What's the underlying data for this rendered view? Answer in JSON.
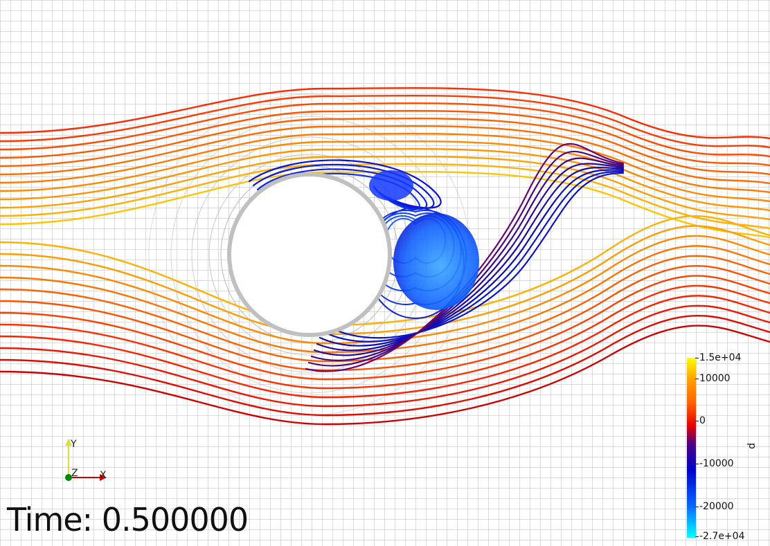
{
  "time_label": "Time: 0.500000",
  "colorbar": {
    "title": "p",
    "ticks": [
      "1.5e+04",
      "10000",
      "0",
      "-10000",
      "-20000",
      "-2.7e+04"
    ],
    "range": [
      -27000,
      15000
    ],
    "colors": [
      "#00ffff",
      "#0a64ff",
      "#0000c8",
      "#4b0082",
      "#e60000",
      "#ff6400",
      "#ffa000",
      "#ffff00"
    ]
  },
  "axes": {
    "x": "X",
    "y": "Y",
    "z": "Z"
  },
  "colors": {
    "background": "#ffffff",
    "grid": "#c8c8c8",
    "cylinder_mesh": "#b4b4b4",
    "x_axis": "#cc0000",
    "y_axis": "#dddd33",
    "z_axis": "#008800"
  }
}
